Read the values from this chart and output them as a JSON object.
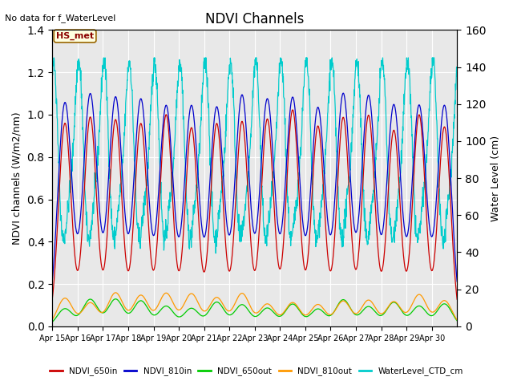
{
  "title": "NDVI Channels",
  "ylabel_left": "NDVI channels (W/m2/nm)",
  "ylabel_right": "Water Level (cm)",
  "no_data_text": "No data for f_WaterLevel",
  "annotation_text": "HS_met",
  "ylim_left": [
    0.0,
    1.4
  ],
  "ylim_right": [
    0,
    160
  ],
  "yticks_left": [
    0.0,
    0.2,
    0.4,
    0.6,
    0.8,
    1.0,
    1.2,
    1.4
  ],
  "yticks_right": [
    0,
    20,
    40,
    60,
    80,
    100,
    120,
    140,
    160
  ],
  "n_days": 16,
  "x_tick_labels": [
    "Apr 15",
    "Apr 16",
    "Apr 17",
    "Apr 18",
    "Apr 19",
    "Apr 20",
    "Apr 21",
    "Apr 22",
    "Apr 23",
    "Apr 24",
    "Apr 25",
    "Apr 26",
    "Apr 27",
    "Apr 28",
    "Apr 29",
    "Apr 30"
  ],
  "colors": {
    "NDVI_650in": "#cc0000",
    "NDVI_810in": "#0000cc",
    "NDVI_650out": "#00cc00",
    "NDVI_810out": "#ff9900",
    "WaterLevel_CTD_cm": "#00cccc"
  },
  "bg_color": "#e8e8e8",
  "legend_entries": [
    "NDVI_650in",
    "NDVI_810in",
    "NDVI_650out",
    "NDVI_810out",
    "WaterLevel_CTD_cm"
  ]
}
